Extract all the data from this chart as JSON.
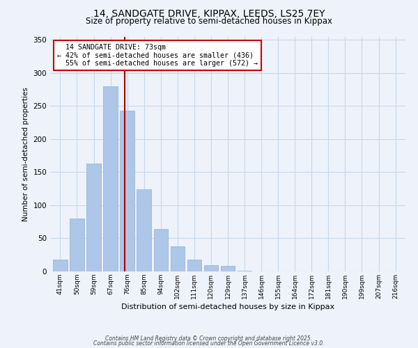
{
  "title_line1": "14, SANDGATE DRIVE, KIPPAX, LEEDS, LS25 7EY",
  "title_line2": "Size of property relative to semi-detached houses in Kippax",
  "xlabel": "Distribution of semi-detached houses by size in Kippax",
  "ylabel": "Number of semi-detached properties",
  "bar_labels": [
    "41sqm",
    "50sqm",
    "59sqm",
    "67sqm",
    "76sqm",
    "85sqm",
    "94sqm",
    "102sqm",
    "111sqm",
    "120sqm",
    "129sqm",
    "137sqm",
    "146sqm",
    "155sqm",
    "164sqm",
    "172sqm",
    "181sqm",
    "190sqm",
    "199sqm",
    "207sqm",
    "216sqm"
  ],
  "bar_values": [
    18,
    80,
    163,
    280,
    243,
    124,
    64,
    38,
    18,
    9,
    8,
    1,
    0,
    0,
    0,
    0,
    0,
    0,
    0,
    0,
    0
  ],
  "bar_color": "#aec6e8",
  "bar_edge_color": "#9ab8d8",
  "grid_color": "#c8d8ea",
  "bg_color": "#eef2fa",
  "marker_label": "14 SANDGATE DRIVE: 73sqm",
  "marker_pct_smaller": "42% of semi-detached houses are smaller (436)",
  "marker_pct_larger": "55% of semi-detached houses are larger (572)",
  "marker_line_color": "#aa0000",
  "annotation_box_color": "#ffffff",
  "annotation_box_edge": "#cc0000",
  "ylim": [
    0,
    355
  ],
  "yticks": [
    0,
    50,
    100,
    150,
    200,
    250,
    300,
    350
  ],
  "footnote1": "Contains HM Land Registry data © Crown copyright and database right 2025.",
  "footnote2": "Contains public sector information licensed under the Open Government Licence v3.0."
}
